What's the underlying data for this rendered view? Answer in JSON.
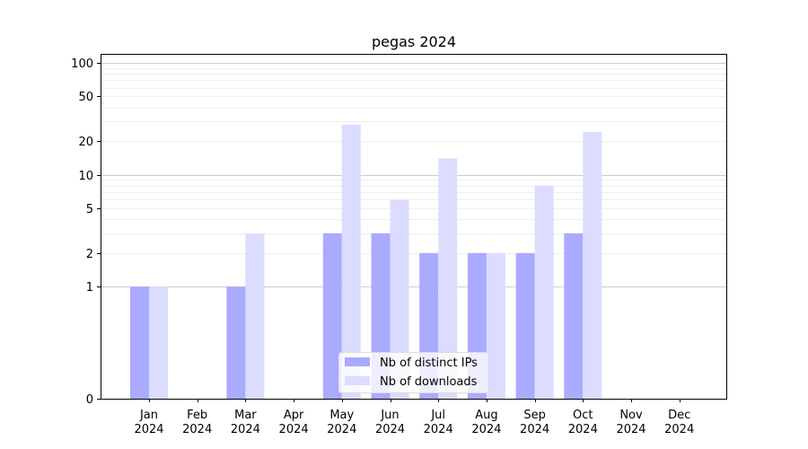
{
  "chart_data": {
    "type": "bar",
    "title": "pegas 2024",
    "xlabel": "",
    "ylabel": "",
    "yscale": "symlog",
    "ylim": [
      0,
      120
    ],
    "yticks": [
      0,
      1,
      2,
      5,
      10,
      20,
      50,
      100
    ],
    "ytick_labels": [
      "0",
      "1",
      "2",
      "5",
      "10",
      "20",
      "50",
      "100"
    ],
    "categories": [
      {
        "month": "Jan",
        "year": "2024"
      },
      {
        "month": "Feb",
        "year": "2024"
      },
      {
        "month": "Mar",
        "year": "2024"
      },
      {
        "month": "Apr",
        "year": "2024"
      },
      {
        "month": "May",
        "year": "2024"
      },
      {
        "month": "Jun",
        "year": "2024"
      },
      {
        "month": "Jul",
        "year": "2024"
      },
      {
        "month": "Aug",
        "year": "2024"
      },
      {
        "month": "Sep",
        "year": "2024"
      },
      {
        "month": "Oct",
        "year": "2024"
      },
      {
        "month": "Nov",
        "year": "2024"
      },
      {
        "month": "Dec",
        "year": "2024"
      }
    ],
    "series": [
      {
        "name": "Nb of distinct IPs",
        "color": "#aaaaff",
        "values": [
          1,
          0,
          1,
          0,
          3,
          3,
          2,
          2,
          2,
          3,
          0,
          0
        ]
      },
      {
        "name": "Nb of downloads",
        "color": "#dcdcff",
        "values": [
          1,
          0,
          3,
          0,
          28,
          6,
          14,
          2,
          8,
          24,
          0,
          0
        ]
      }
    ],
    "grid": true,
    "legend_position": "lower center"
  }
}
